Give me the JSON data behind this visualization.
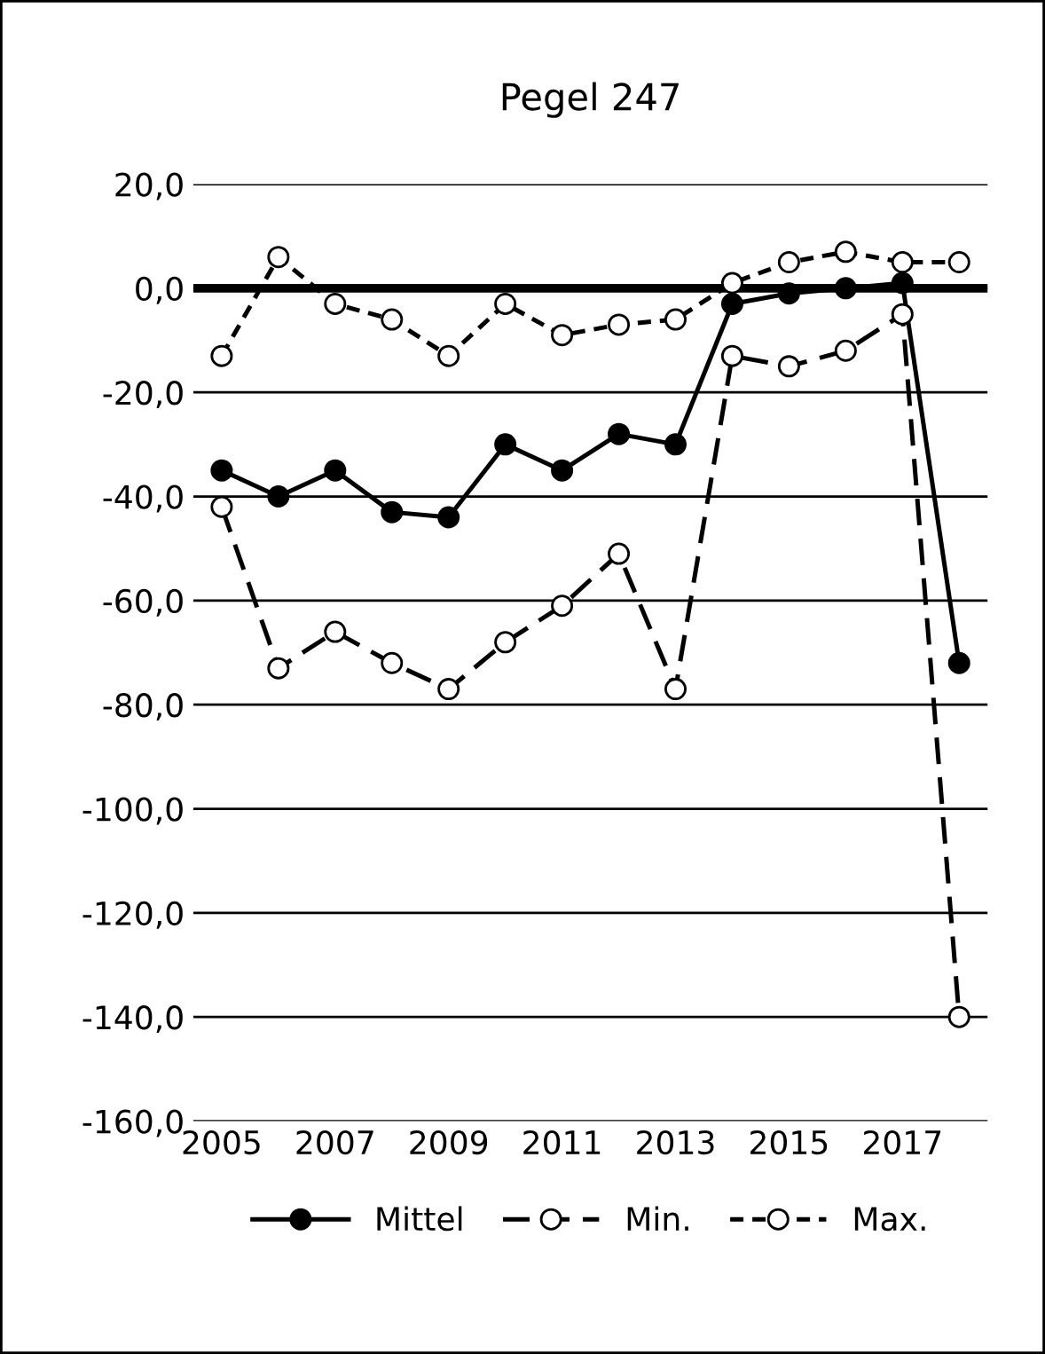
{
  "chart_data": {
    "type": "line",
    "title": "Pegel 247",
    "categories": [
      "2005",
      null,
      "2007",
      null,
      "2009",
      null,
      "2011",
      null,
      "2013",
      null,
      "2015",
      null,
      "2017",
      null
    ],
    "series": [
      {
        "name": "Mittel",
        "color": "#000000",
        "marker": "circle",
        "line_style": "solid",
        "values": [
          -35,
          -40,
          -35,
          -43,
          -44,
          -30,
          -35,
          -28,
          -30,
          -3,
          -1,
          0,
          1,
          -72
        ]
      },
      {
        "name": "Min.",
        "color": "#000000",
        "marker": "circle",
        "line_style": "dashed",
        "values": [
          -42,
          -73,
          -66,
          -72,
          -77,
          -68,
          -61,
          -51,
          -77,
          -13,
          -15,
          -12,
          -5,
          -140
        ]
      },
      {
        "name": "Max.",
        "color": "#000000",
        "marker": "circle",
        "line_style": "dotted",
        "values": [
          -13,
          6,
          -3,
          -6,
          -13,
          -3,
          -9,
          -7,
          -6,
          1,
          5,
          7,
          5,
          5
        ]
      }
    ],
    "ylim": [
      -160,
      20
    ],
    "yticks": [
      {
        "value": -160,
        "label": "-160,0"
      },
      {
        "value": -140,
        "label": "-140,0"
      },
      {
        "value": -120,
        "label": "-120,0"
      },
      {
        "value": -100,
        "label": "-100,0"
      },
      {
        "value": -80,
        "label": "-80,0"
      },
      {
        "value": -60,
        "label": "-60,0"
      },
      {
        "value": -40,
        "label": "-40,0"
      },
      {
        "value": -20,
        "label": "-20,0"
      },
      {
        "value": 0,
        "label": "0,0"
      },
      {
        "value": 20,
        "label": "20,0"
      }
    ],
    "ref_lines": [
      {
        "axis": "y",
        "value": 0,
        "color": "#000000"
      }
    ],
    "grid": "y",
    "legend": "bottom"
  }
}
